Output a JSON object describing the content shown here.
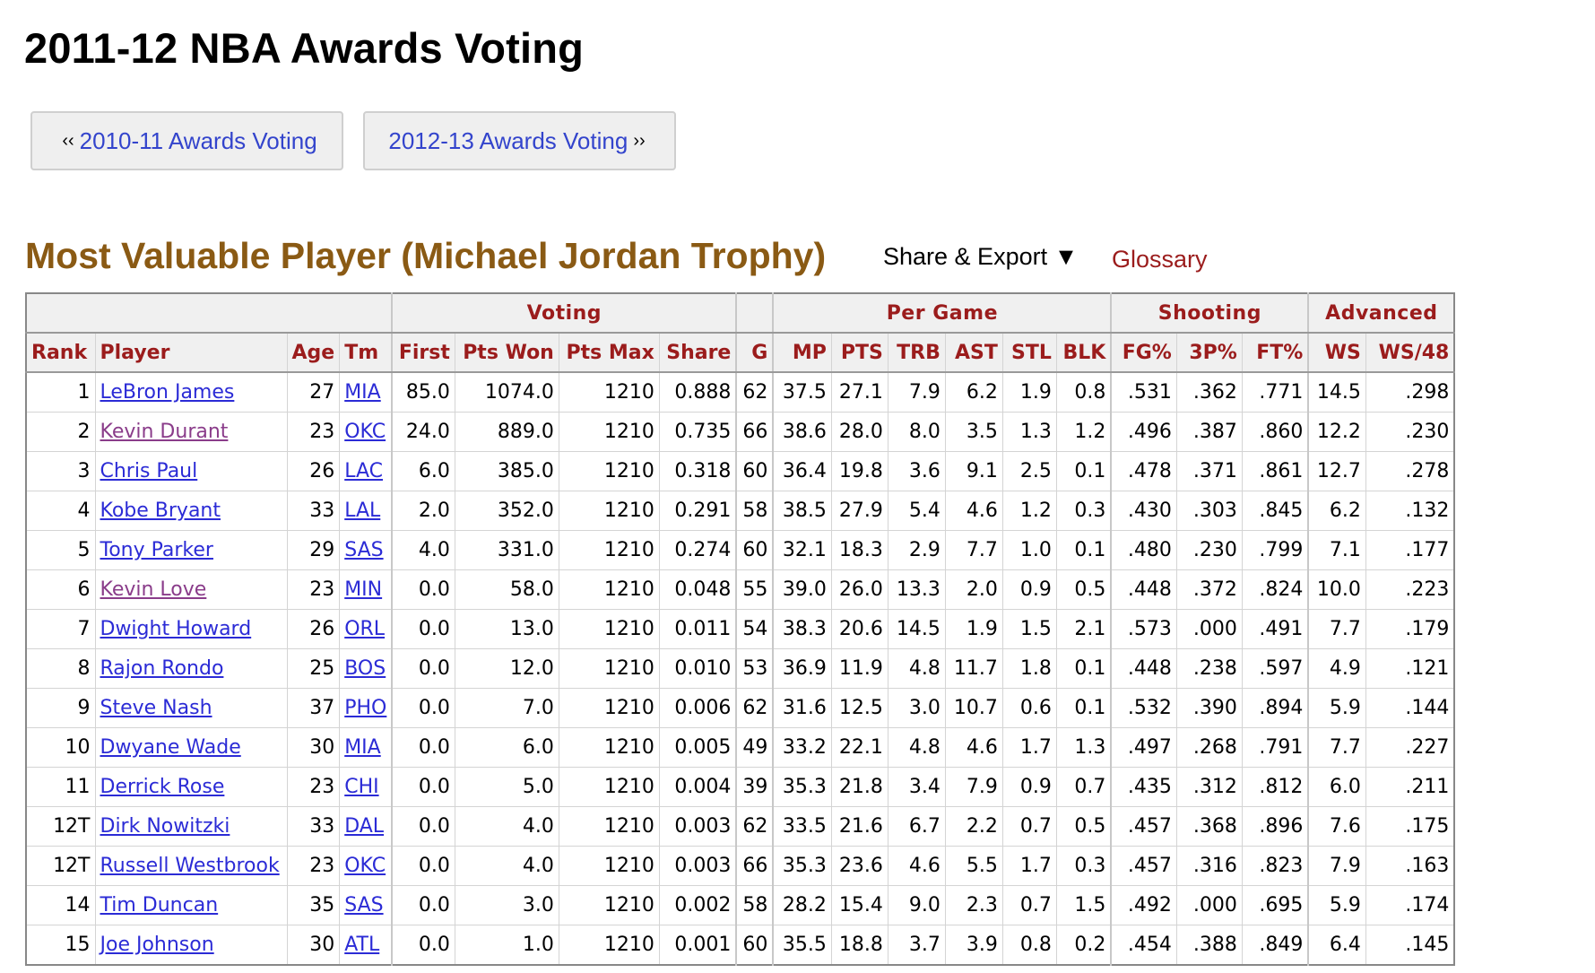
{
  "page": {
    "title": "2011-12 NBA Awards Voting"
  },
  "nav": {
    "prev_arrow": "‹‹",
    "prev_label": "2010-11 Awards Voting",
    "next_label": "2012-13 Awards Voting",
    "next_arrow": "››"
  },
  "section": {
    "title": "Most Valuable Player (Michael Jordan Trophy)",
    "share_export": "Share & Export ▼",
    "glossary": "Glossary"
  },
  "table": {
    "over_headers": {
      "voting": "Voting",
      "per_game": "Per Game",
      "shooting": "Shooting",
      "advanced": "Advanced"
    },
    "columns": [
      "Rank",
      "Player",
      "Age",
      "Tm",
      "First",
      "Pts Won",
      "Pts Max",
      "Share",
      "G",
      "MP",
      "PTS",
      "TRB",
      "AST",
      "STL",
      "BLK",
      "FG%",
      "3P%",
      "FT%",
      "WS",
      "WS/48"
    ],
    "rows": [
      {
        "rank": "1",
        "player": "LeBron James",
        "visited": false,
        "age": "27",
        "tm": "MIA",
        "first": "85.0",
        "pts_won": "1074.0",
        "pts_max": "1210",
        "share": "0.888",
        "g": "62",
        "mp": "37.5",
        "pts": "27.1",
        "trb": "7.9",
        "ast": "6.2",
        "stl": "1.9",
        "blk": "0.8",
        "fg": ".531",
        "p3": ".362",
        "ft": ".771",
        "ws": "14.5",
        "ws48": ".298"
      },
      {
        "rank": "2",
        "player": "Kevin Durant",
        "visited": true,
        "age": "23",
        "tm": "OKC",
        "first": "24.0",
        "pts_won": "889.0",
        "pts_max": "1210",
        "share": "0.735",
        "g": "66",
        "mp": "38.6",
        "pts": "28.0",
        "trb": "8.0",
        "ast": "3.5",
        "stl": "1.3",
        "blk": "1.2",
        "fg": ".496",
        "p3": ".387",
        "ft": ".860",
        "ws": "12.2",
        "ws48": ".230"
      },
      {
        "rank": "3",
        "player": "Chris Paul",
        "visited": false,
        "age": "26",
        "tm": "LAC",
        "first": "6.0",
        "pts_won": "385.0",
        "pts_max": "1210",
        "share": "0.318",
        "g": "60",
        "mp": "36.4",
        "pts": "19.8",
        "trb": "3.6",
        "ast": "9.1",
        "stl": "2.5",
        "blk": "0.1",
        "fg": ".478",
        "p3": ".371",
        "ft": ".861",
        "ws": "12.7",
        "ws48": ".278"
      },
      {
        "rank": "4",
        "player": "Kobe Bryant",
        "visited": false,
        "age": "33",
        "tm": "LAL",
        "first": "2.0",
        "pts_won": "352.0",
        "pts_max": "1210",
        "share": "0.291",
        "g": "58",
        "mp": "38.5",
        "pts": "27.9",
        "trb": "5.4",
        "ast": "4.6",
        "stl": "1.2",
        "blk": "0.3",
        "fg": ".430",
        "p3": ".303",
        "ft": ".845",
        "ws": "6.2",
        "ws48": ".132"
      },
      {
        "rank": "5",
        "player": "Tony Parker",
        "visited": false,
        "age": "29",
        "tm": "SAS",
        "first": "4.0",
        "pts_won": "331.0",
        "pts_max": "1210",
        "share": "0.274",
        "g": "60",
        "mp": "32.1",
        "pts": "18.3",
        "trb": "2.9",
        "ast": "7.7",
        "stl": "1.0",
        "blk": "0.1",
        "fg": ".480",
        "p3": ".230",
        "ft": ".799",
        "ws": "7.1",
        "ws48": ".177"
      },
      {
        "rank": "6",
        "player": "Kevin Love",
        "visited": true,
        "age": "23",
        "tm": "MIN",
        "first": "0.0",
        "pts_won": "58.0",
        "pts_max": "1210",
        "share": "0.048",
        "g": "55",
        "mp": "39.0",
        "pts": "26.0",
        "trb": "13.3",
        "ast": "2.0",
        "stl": "0.9",
        "blk": "0.5",
        "fg": ".448",
        "p3": ".372",
        "ft": ".824",
        "ws": "10.0",
        "ws48": ".223"
      },
      {
        "rank": "7",
        "player": "Dwight Howard",
        "visited": false,
        "age": "26",
        "tm": "ORL",
        "first": "0.0",
        "pts_won": "13.0",
        "pts_max": "1210",
        "share": "0.011",
        "g": "54",
        "mp": "38.3",
        "pts": "20.6",
        "trb": "14.5",
        "ast": "1.9",
        "stl": "1.5",
        "blk": "2.1",
        "fg": ".573",
        "p3": ".000",
        "ft": ".491",
        "ws": "7.7",
        "ws48": ".179"
      },
      {
        "rank": "8",
        "player": "Rajon Rondo",
        "visited": false,
        "age": "25",
        "tm": "BOS",
        "first": "0.0",
        "pts_won": "12.0",
        "pts_max": "1210",
        "share": "0.010",
        "g": "53",
        "mp": "36.9",
        "pts": "11.9",
        "trb": "4.8",
        "ast": "11.7",
        "stl": "1.8",
        "blk": "0.1",
        "fg": ".448",
        "p3": ".238",
        "ft": ".597",
        "ws": "4.9",
        "ws48": ".121"
      },
      {
        "rank": "9",
        "player": "Steve Nash",
        "visited": false,
        "age": "37",
        "tm": "PHO",
        "first": "0.0",
        "pts_won": "7.0",
        "pts_max": "1210",
        "share": "0.006",
        "g": "62",
        "mp": "31.6",
        "pts": "12.5",
        "trb": "3.0",
        "ast": "10.7",
        "stl": "0.6",
        "blk": "0.1",
        "fg": ".532",
        "p3": ".390",
        "ft": ".894",
        "ws": "5.9",
        "ws48": ".144"
      },
      {
        "rank": "10",
        "player": "Dwyane Wade",
        "visited": false,
        "age": "30",
        "tm": "MIA",
        "first": "0.0",
        "pts_won": "6.0",
        "pts_max": "1210",
        "share": "0.005",
        "g": "49",
        "mp": "33.2",
        "pts": "22.1",
        "trb": "4.8",
        "ast": "4.6",
        "stl": "1.7",
        "blk": "1.3",
        "fg": ".497",
        "p3": ".268",
        "ft": ".791",
        "ws": "7.7",
        "ws48": ".227"
      },
      {
        "rank": "11",
        "player": "Derrick Rose",
        "visited": false,
        "age": "23",
        "tm": "CHI",
        "first": "0.0",
        "pts_won": "5.0",
        "pts_max": "1210",
        "share": "0.004",
        "g": "39",
        "mp": "35.3",
        "pts": "21.8",
        "trb": "3.4",
        "ast": "7.9",
        "stl": "0.9",
        "blk": "0.7",
        "fg": ".435",
        "p3": ".312",
        "ft": ".812",
        "ws": "6.0",
        "ws48": ".211"
      },
      {
        "rank": "12T",
        "player": "Dirk Nowitzki",
        "visited": false,
        "age": "33",
        "tm": "DAL",
        "first": "0.0",
        "pts_won": "4.0",
        "pts_max": "1210",
        "share": "0.003",
        "g": "62",
        "mp": "33.5",
        "pts": "21.6",
        "trb": "6.7",
        "ast": "2.2",
        "stl": "0.7",
        "blk": "0.5",
        "fg": ".457",
        "p3": ".368",
        "ft": ".896",
        "ws": "7.6",
        "ws48": ".175"
      },
      {
        "rank": "12T",
        "player": "Russell Westbrook",
        "visited": false,
        "age": "23",
        "tm": "OKC",
        "first": "0.0",
        "pts_won": "4.0",
        "pts_max": "1210",
        "share": "0.003",
        "g": "66",
        "mp": "35.3",
        "pts": "23.6",
        "trb": "4.6",
        "ast": "5.5",
        "stl": "1.7",
        "blk": "0.3",
        "fg": ".457",
        "p3": ".316",
        "ft": ".823",
        "ws": "7.9",
        "ws48": ".163"
      },
      {
        "rank": "14",
        "player": "Tim Duncan",
        "visited": false,
        "age": "35",
        "tm": "SAS",
        "first": "0.0",
        "pts_won": "3.0",
        "pts_max": "1210",
        "share": "0.002",
        "g": "58",
        "mp": "28.2",
        "pts": "15.4",
        "trb": "9.0",
        "ast": "2.3",
        "stl": "0.7",
        "blk": "1.5",
        "fg": ".492",
        "p3": ".000",
        "ft": ".695",
        "ws": "5.9",
        "ws48": ".174"
      },
      {
        "rank": "15",
        "player": "Joe Johnson",
        "visited": false,
        "age": "30",
        "tm": "ATL",
        "first": "0.0",
        "pts_won": "1.0",
        "pts_max": "1210",
        "share": "0.001",
        "g": "60",
        "mp": "35.5",
        "pts": "18.8",
        "trb": "3.7",
        "ast": "3.9",
        "stl": "0.8",
        "blk": "0.2",
        "fg": ".454",
        "p3": ".388",
        "ft": ".849",
        "ws": "6.4",
        "ws48": ".145"
      }
    ]
  }
}
